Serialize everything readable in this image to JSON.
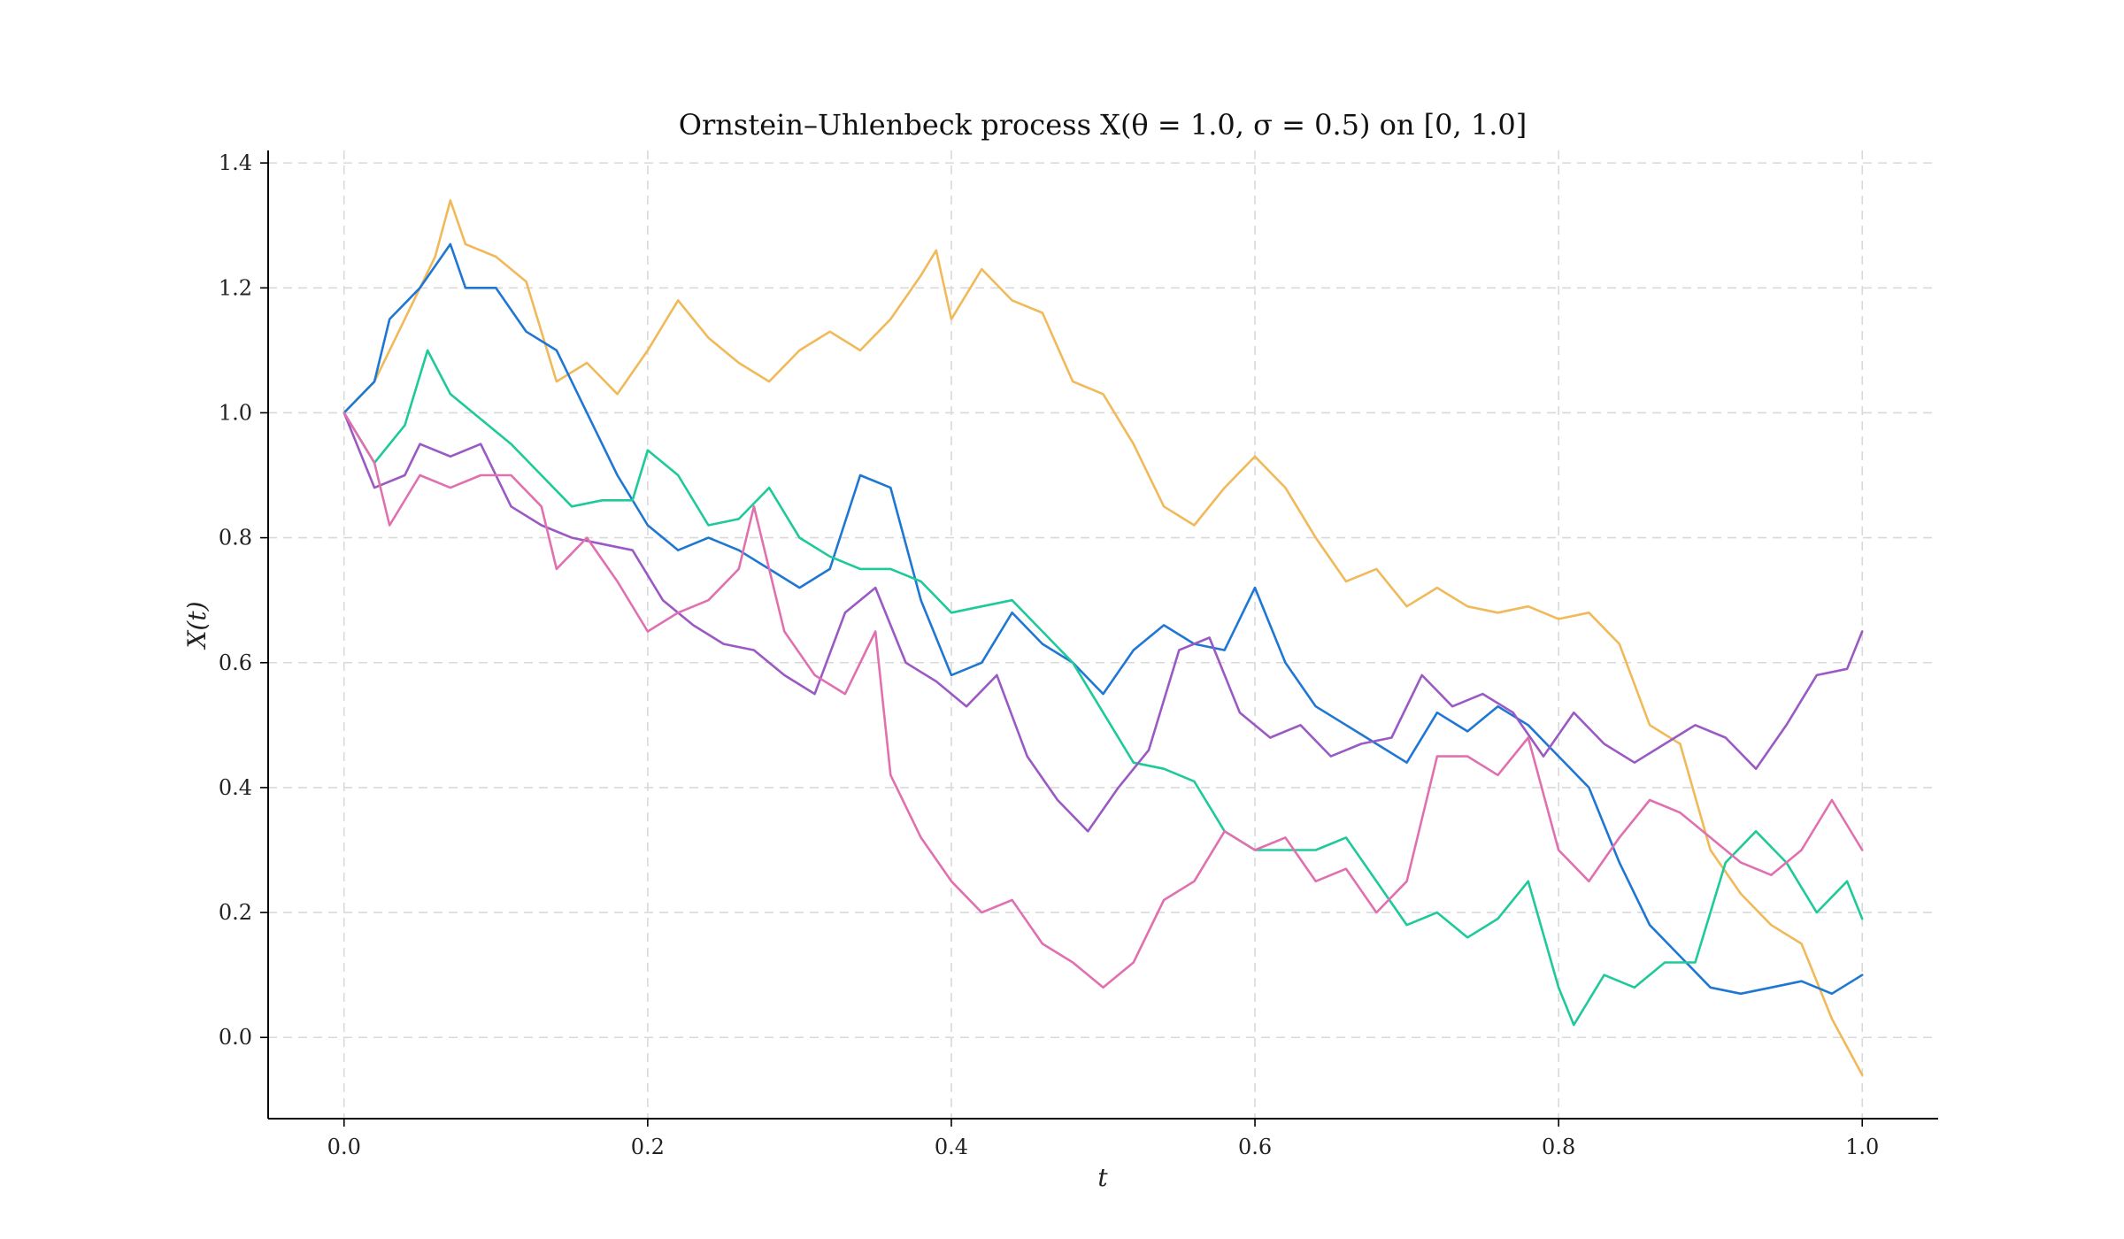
{
  "chart_data": {
    "type": "line",
    "title": "Ornstein–Uhlenbeck process X(θ = 1.0, σ = 0.5) on [0, 1.0]",
    "xlabel": "t",
    "ylabel": "X(t)",
    "xlim": [
      -0.05,
      1.05
    ],
    "ylim": [
      -0.13,
      1.42
    ],
    "x_ticks": [
      0.0,
      0.2,
      0.4,
      0.6,
      0.8,
      1.0
    ],
    "x_tick_labels": [
      "0.0",
      "0.2",
      "0.4",
      "0.6",
      "0.8",
      "1.0"
    ],
    "y_ticks": [
      0.0,
      0.2,
      0.4,
      0.6,
      0.8,
      1.0,
      1.2,
      1.4
    ],
    "y_tick_labels": [
      "0.0",
      "0.2",
      "0.4",
      "0.6",
      "0.8",
      "1.0",
      "1.2",
      "1.4"
    ],
    "grid": true,
    "series": [
      {
        "color": "#f0b95a",
        "x": [
          0.0,
          0.02,
          0.04,
          0.06,
          0.07,
          0.08,
          0.1,
          0.12,
          0.14,
          0.16,
          0.18,
          0.2,
          0.22,
          0.24,
          0.26,
          0.28,
          0.3,
          0.32,
          0.34,
          0.36,
          0.38,
          0.39,
          0.4,
          0.42,
          0.44,
          0.46,
          0.48,
          0.5,
          0.52,
          0.54,
          0.56,
          0.58,
          0.6,
          0.62,
          0.64,
          0.66,
          0.68,
          0.7,
          0.72,
          0.74,
          0.76,
          0.78,
          0.8,
          0.82,
          0.84,
          0.86,
          0.88,
          0.9,
          0.92,
          0.94,
          0.96,
          0.98,
          1.0
        ],
        "y": [
          1.0,
          1.05,
          1.15,
          1.25,
          1.34,
          1.27,
          1.25,
          1.21,
          1.05,
          1.08,
          1.03,
          1.1,
          1.18,
          1.12,
          1.08,
          1.05,
          1.1,
          1.13,
          1.1,
          1.15,
          1.22,
          1.26,
          1.15,
          1.23,
          1.18,
          1.16,
          1.05,
          1.03,
          0.95,
          0.85,
          0.82,
          0.88,
          0.93,
          0.88,
          0.8,
          0.73,
          0.75,
          0.69,
          0.72,
          0.69,
          0.68,
          0.69,
          0.67,
          0.68,
          0.63,
          0.5,
          0.47,
          0.3,
          0.23,
          0.18,
          0.15,
          0.03,
          -0.06
        ]
      },
      {
        "color": "#1f77d4",
        "x": [
          0.0,
          0.02,
          0.03,
          0.05,
          0.07,
          0.08,
          0.1,
          0.12,
          0.14,
          0.16,
          0.18,
          0.2,
          0.22,
          0.24,
          0.26,
          0.28,
          0.3,
          0.32,
          0.34,
          0.36,
          0.38,
          0.4,
          0.42,
          0.44,
          0.46,
          0.48,
          0.5,
          0.52,
          0.54,
          0.56,
          0.58,
          0.6,
          0.62,
          0.64,
          0.66,
          0.68,
          0.7,
          0.72,
          0.74,
          0.76,
          0.78,
          0.8,
          0.82,
          0.84,
          0.86,
          0.88,
          0.9,
          0.92,
          0.94,
          0.96,
          0.98,
          1.0
        ],
        "y": [
          1.0,
          1.05,
          1.15,
          1.2,
          1.27,
          1.2,
          1.2,
          1.13,
          1.1,
          1.0,
          0.9,
          0.82,
          0.78,
          0.8,
          0.78,
          0.75,
          0.72,
          0.75,
          0.9,
          0.88,
          0.7,
          0.58,
          0.6,
          0.68,
          0.63,
          0.6,
          0.55,
          0.62,
          0.66,
          0.63,
          0.62,
          0.72,
          0.6,
          0.53,
          0.5,
          0.47,
          0.44,
          0.52,
          0.49,
          0.53,
          0.5,
          0.45,
          0.4,
          0.28,
          0.18,
          0.13,
          0.08,
          0.07,
          0.08,
          0.09,
          0.07,
          0.1
        ]
      },
      {
        "color": "#1ec99a",
        "x": [
          0.0,
          0.02,
          0.04,
          0.055,
          0.07,
          0.09,
          0.11,
          0.13,
          0.15,
          0.17,
          0.19,
          0.2,
          0.22,
          0.24,
          0.26,
          0.28,
          0.3,
          0.32,
          0.34,
          0.36,
          0.38,
          0.4,
          0.42,
          0.44,
          0.46,
          0.48,
          0.5,
          0.52,
          0.54,
          0.56,
          0.58,
          0.6,
          0.62,
          0.64,
          0.66,
          0.68,
          0.7,
          0.72,
          0.74,
          0.76,
          0.78,
          0.8,
          0.81,
          0.83,
          0.85,
          0.87,
          0.89,
          0.91,
          0.93,
          0.95,
          0.97,
          0.99,
          1.0
        ],
        "y": [
          1.0,
          0.92,
          0.98,
          1.1,
          1.03,
          0.99,
          0.95,
          0.9,
          0.85,
          0.86,
          0.86,
          0.94,
          0.9,
          0.82,
          0.83,
          0.88,
          0.8,
          0.77,
          0.75,
          0.75,
          0.73,
          0.68,
          0.69,
          0.7,
          0.65,
          0.6,
          0.52,
          0.44,
          0.43,
          0.41,
          0.33,
          0.3,
          0.3,
          0.3,
          0.32,
          0.25,
          0.18,
          0.2,
          0.16,
          0.19,
          0.25,
          0.08,
          0.02,
          0.1,
          0.08,
          0.12,
          0.12,
          0.28,
          0.33,
          0.28,
          0.2,
          0.25,
          0.19
        ]
      },
      {
        "color": "#9b59c4",
        "x": [
          0.0,
          0.02,
          0.04,
          0.05,
          0.07,
          0.09,
          0.11,
          0.13,
          0.15,
          0.17,
          0.19,
          0.21,
          0.23,
          0.25,
          0.27,
          0.29,
          0.31,
          0.33,
          0.35,
          0.37,
          0.39,
          0.41,
          0.43,
          0.45,
          0.47,
          0.49,
          0.51,
          0.53,
          0.55,
          0.57,
          0.59,
          0.61,
          0.63,
          0.65,
          0.67,
          0.69,
          0.71,
          0.73,
          0.75,
          0.77,
          0.79,
          0.81,
          0.83,
          0.85,
          0.87,
          0.89,
          0.91,
          0.93,
          0.95,
          0.97,
          0.99,
          1.0
        ],
        "y": [
          1.0,
          0.88,
          0.9,
          0.95,
          0.93,
          0.95,
          0.85,
          0.82,
          0.8,
          0.79,
          0.78,
          0.7,
          0.66,
          0.63,
          0.62,
          0.58,
          0.55,
          0.68,
          0.72,
          0.6,
          0.57,
          0.53,
          0.58,
          0.45,
          0.38,
          0.33,
          0.4,
          0.46,
          0.62,
          0.64,
          0.52,
          0.48,
          0.5,
          0.45,
          0.47,
          0.48,
          0.58,
          0.53,
          0.55,
          0.52,
          0.45,
          0.52,
          0.47,
          0.44,
          0.47,
          0.5,
          0.48,
          0.43,
          0.5,
          0.58,
          0.59,
          0.65
        ]
      },
      {
        "color": "#e070b0",
        "x": [
          0.0,
          0.02,
          0.03,
          0.05,
          0.07,
          0.09,
          0.11,
          0.13,
          0.14,
          0.16,
          0.18,
          0.2,
          0.22,
          0.24,
          0.26,
          0.27,
          0.29,
          0.31,
          0.33,
          0.35,
          0.36,
          0.38,
          0.4,
          0.42,
          0.44,
          0.46,
          0.48,
          0.5,
          0.52,
          0.54,
          0.56,
          0.58,
          0.6,
          0.62,
          0.64,
          0.66,
          0.68,
          0.7,
          0.72,
          0.74,
          0.76,
          0.78,
          0.8,
          0.82,
          0.84,
          0.86,
          0.88,
          0.9,
          0.92,
          0.94,
          0.96,
          0.98,
          1.0
        ],
        "y": [
          1.0,
          0.92,
          0.82,
          0.9,
          0.88,
          0.9,
          0.9,
          0.85,
          0.75,
          0.8,
          0.73,
          0.65,
          0.68,
          0.7,
          0.75,
          0.85,
          0.65,
          0.58,
          0.55,
          0.65,
          0.42,
          0.32,
          0.25,
          0.2,
          0.22,
          0.15,
          0.12,
          0.08,
          0.12,
          0.22,
          0.25,
          0.33,
          0.3,
          0.32,
          0.25,
          0.27,
          0.2,
          0.25,
          0.45,
          0.45,
          0.42,
          0.48,
          0.3,
          0.25,
          0.32,
          0.38,
          0.36,
          0.32,
          0.28,
          0.26,
          0.3,
          0.38,
          0.3
        ]
      }
    ]
  }
}
